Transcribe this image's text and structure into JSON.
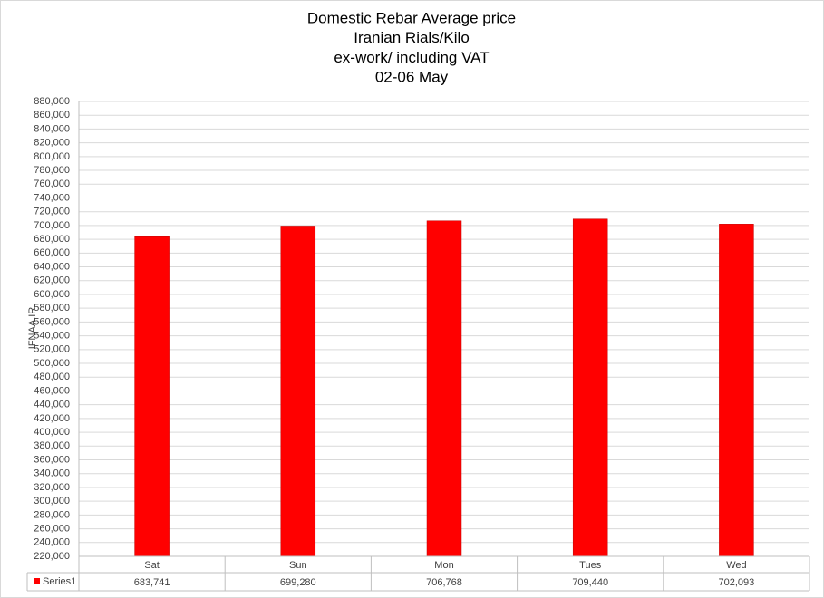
{
  "chart_data": {
    "type": "bar",
    "title": [
      "Domestic Rebar Average price",
      "Iranian Rials/Kilo",
      "ex-work/ including VAT",
      "02-06 May"
    ],
    "y_label": "IFNAA.IR",
    "categories": [
      "Sat",
      "Sun",
      "Mon",
      "Tues",
      "Wed"
    ],
    "series": [
      {
        "name": "Series1",
        "color": "#ff0000",
        "values": [
          683741,
          699280,
          706768,
          709440,
          702093
        ],
        "value_labels": [
          "683,741",
          "699,280",
          "706,768",
          "709,440",
          "702,093"
        ]
      }
    ],
    "ylim": [
      220000,
      880000
    ],
    "yticks": [
      {
        "value": 220000,
        "label": "220,000"
      },
      {
        "value": 240000,
        "label": "240,000"
      },
      {
        "value": 260000,
        "label": "260,000"
      },
      {
        "value": 280000,
        "label": "280,000"
      },
      {
        "value": 300000,
        "label": "300,000"
      },
      {
        "value": 320000,
        "label": "320,000"
      },
      {
        "value": 340000,
        "label": "340,000"
      },
      {
        "value": 360000,
        "label": "360,000"
      },
      {
        "value": 380000,
        "label": "380,000"
      },
      {
        "value": 400000,
        "label": "400,000"
      },
      {
        "value": 420000,
        "label": "420,000"
      },
      {
        "value": 440000,
        "label": "440,000"
      },
      {
        "value": 460000,
        "label": "460,000"
      },
      {
        "value": 480000,
        "label": "480,000"
      },
      {
        "value": 500000,
        "label": "500,000"
      },
      {
        "value": 520000,
        "label": "520,000"
      },
      {
        "value": 540000,
        "label": "540,000"
      },
      {
        "value": 560000,
        "label": "560,000"
      },
      {
        "value": 580000,
        "label": "580,000"
      },
      {
        "value": 600000,
        "label": "600,000"
      },
      {
        "value": 620000,
        "label": "620,000"
      },
      {
        "value": 640000,
        "label": "640,000"
      },
      {
        "value": 660000,
        "label": "660,000"
      },
      {
        "value": 680000,
        "label": "680,000"
      },
      {
        "value": 700000,
        "label": "700,000"
      },
      {
        "value": 720000,
        "label": "720,000"
      },
      {
        "value": 740000,
        "label": "740,000"
      },
      {
        "value": 760000,
        "label": "760,000"
      },
      {
        "value": 780000,
        "label": "780,000"
      },
      {
        "value": 800000,
        "label": "800,000"
      },
      {
        "value": 820000,
        "label": "820,000"
      },
      {
        "value": 840000,
        "label": "840,000"
      },
      {
        "value": 860000,
        "label": "860,000"
      },
      {
        "value": 880000,
        "label": "880,000"
      }
    ],
    "grid": true,
    "data_table": true
  }
}
